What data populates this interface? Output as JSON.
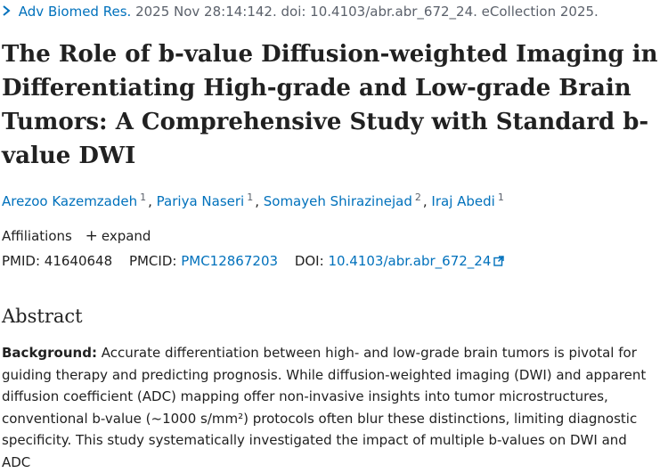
{
  "citation": {
    "chevron_icon": "chevron-right-icon",
    "journal": "Adv Biomed Res.",
    "details": "2025 Nov 28:14:142. doi: 10.4103/abr.abr_672_24. eCollection 2025."
  },
  "title": "The Role of b-value Diffusion-weighted Imaging in Differentiating High-grade and Low-grade Brain Tumors: A Comprehensive Study with Standard b-value DWI",
  "authors": [
    {
      "name": "Arezoo Kazemzadeh",
      "sup": "1"
    },
    {
      "name": "Pariya Naseri",
      "sup": "1"
    },
    {
      "name": "Somayeh Shirazinejad",
      "sup": "2"
    },
    {
      "name": "Iraj Abedi",
      "sup": "1"
    }
  ],
  "affiliations": {
    "label": "Affiliations",
    "expand_label": "expand"
  },
  "identifiers": {
    "pmid_label": "PMID:",
    "pmid": "41640648",
    "pmcid_label": "PMCID:",
    "pmcid": "PMC12867203",
    "doi_label": "DOI:",
    "doi": "10.4103/abr.abr_672_24"
  },
  "abstract": {
    "heading": "Abstract",
    "background_label": "Background:",
    "background_text": "Accurate differentiation between high- and low-grade brain tumors is pivotal for guiding therapy and predicting prognosis. While diffusion-weighted imaging (DWI) and apparent diffusion coefficient (ADC) mapping offer non-invasive insights into tumor microstructures, conventional b-value (~1000 s/mm²) protocols often blur these distinctions, limiting diagnostic specificity. This study systematically investigated the impact of multiple b-values on DWI and ADC"
  },
  "colors": {
    "link": "#0071bc",
    "text": "#212121",
    "muted": "#5b616b"
  }
}
